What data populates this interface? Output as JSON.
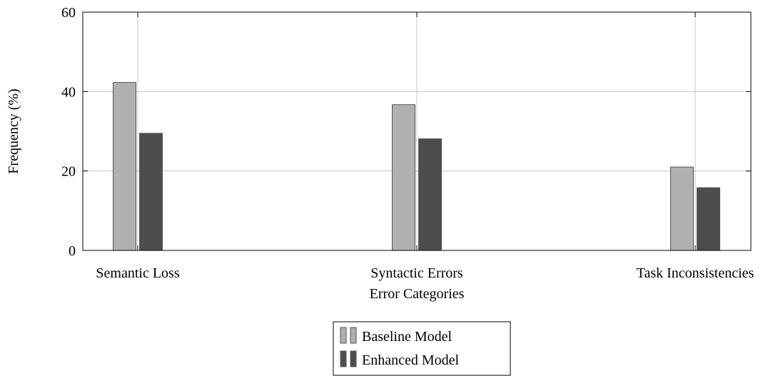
{
  "chart_data": {
    "type": "bar",
    "categories": [
      "Semantic Loss",
      "Syntactic Errors",
      "Task Inconsistencies"
    ],
    "series": [
      {
        "name": "Baseline Model",
        "values": [
          42.3,
          36.7,
          21.0
        ],
        "color": "#b0b0b0"
      },
      {
        "name": "Enhanced Model",
        "values": [
          29.5,
          28.1,
          15.8
        ],
        "color": "#4d4d4d"
      }
    ],
    "xlabel": "Error Categories",
    "ylabel": "Frequency (%)",
    "ylim": [
      0,
      60
    ],
    "yticks": [
      0,
      20,
      40,
      60
    ],
    "grid": true,
    "legend_position": "bottom-center"
  }
}
